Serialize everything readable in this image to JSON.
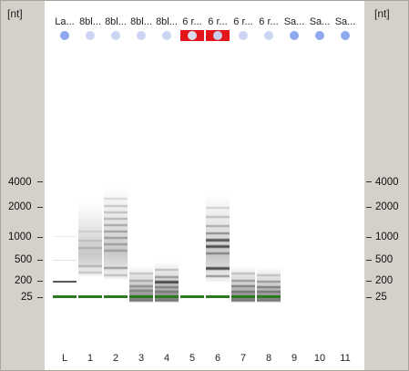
{
  "axis": {
    "unit_left": "[nt]",
    "unit_right": "[nt]",
    "ticks": [
      "4000",
      "2000",
      "1000",
      "500",
      "200",
      "25"
    ]
  },
  "lanes": [
    {
      "name": "La...",
      "number": "L",
      "status": "ok"
    },
    {
      "name": "8bl...",
      "number": "1",
      "status": "dim"
    },
    {
      "name": "8bl...",
      "number": "2",
      "status": "dim"
    },
    {
      "name": "8bl...",
      "number": "3",
      "status": "dim"
    },
    {
      "name": "8bl...",
      "number": "4",
      "status": "dim"
    },
    {
      "name": "6 r...",
      "number": "5",
      "status": "flagged"
    },
    {
      "name": "6 r...",
      "number": "6",
      "status": "flagged"
    },
    {
      "name": "6 r...",
      "number": "7",
      "status": "dim"
    },
    {
      "name": "6 r...",
      "number": "8",
      "status": "dim"
    },
    {
      "name": "Sa...",
      "number": "9",
      "status": "ok"
    },
    {
      "name": "Sa...",
      "number": "10",
      "status": "ok"
    },
    {
      "name": "Sa...",
      "number": "11",
      "status": "ok"
    }
  ],
  "colors": {
    "ok_dot": "#8fa9ef",
    "dim_dot": "#ccd6f4",
    "flag_dot": "#dcdcec",
    "flag_bg": "#e3151a",
    "marker_band": "#2a7a1e"
  }
}
